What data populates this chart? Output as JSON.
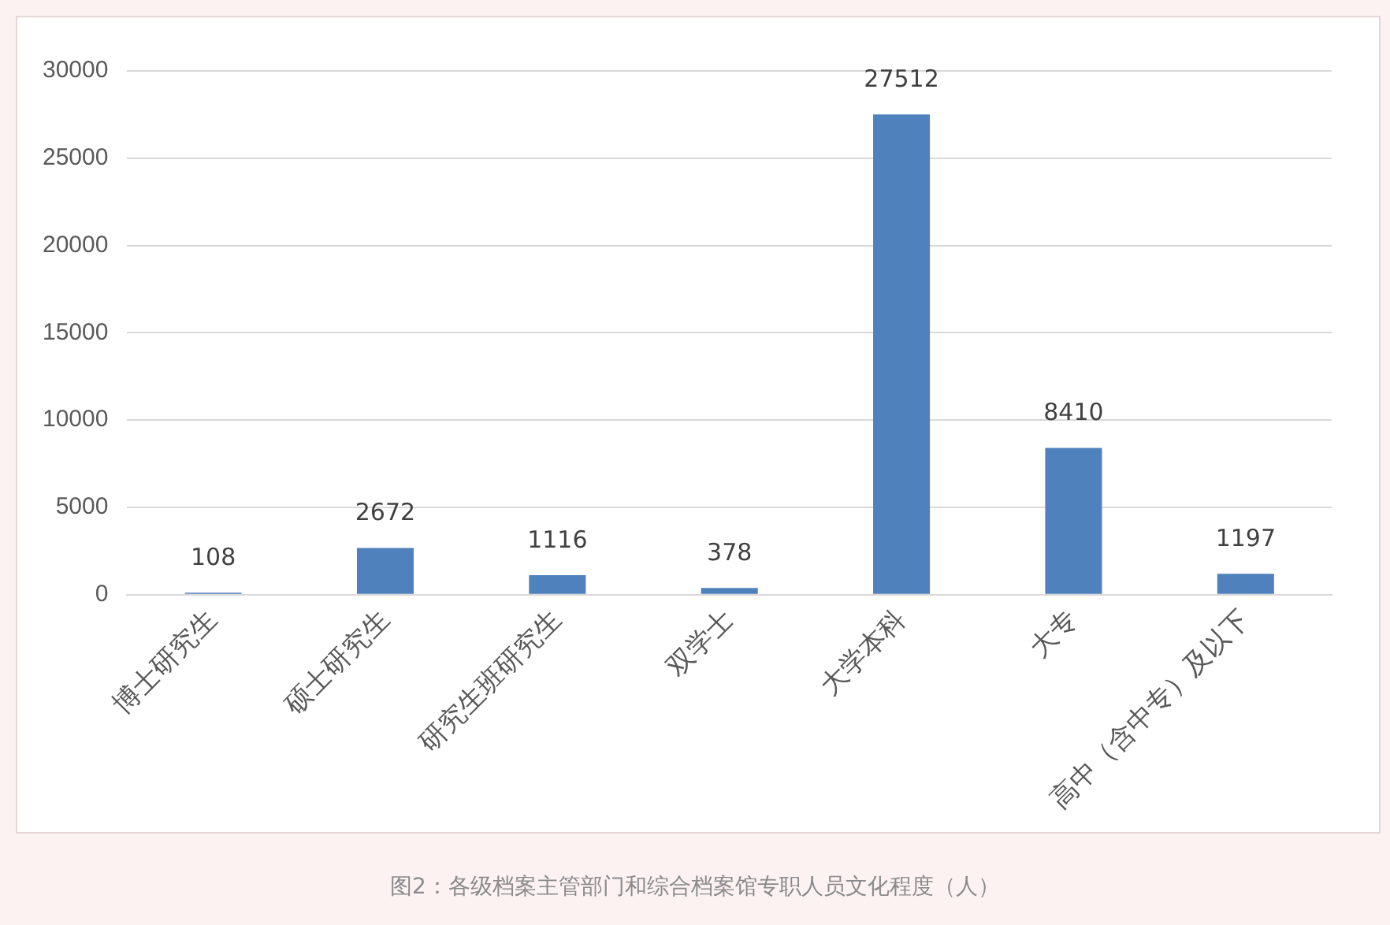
{
  "chart_data": {
    "type": "bar",
    "categories": [
      "博士研究生",
      "硕士研究生",
      "研究生班研究生",
      "双学士",
      "大学本科",
      "大专",
      "高中（含中专）及以下"
    ],
    "values": [
      108,
      2672,
      1116,
      378,
      27512,
      8410,
      1197
    ],
    "color": "#4f81bd",
    "ylim": [
      0,
      30000
    ],
    "yticks": [
      0,
      5000,
      10000,
      15000,
      20000,
      25000,
      30000
    ],
    "grid": "y",
    "legend": false,
    "data_labels": true,
    "annotations": [
      "图2：各级档案主管部门和综合档案馆专职人员文化程度（人）"
    ]
  }
}
